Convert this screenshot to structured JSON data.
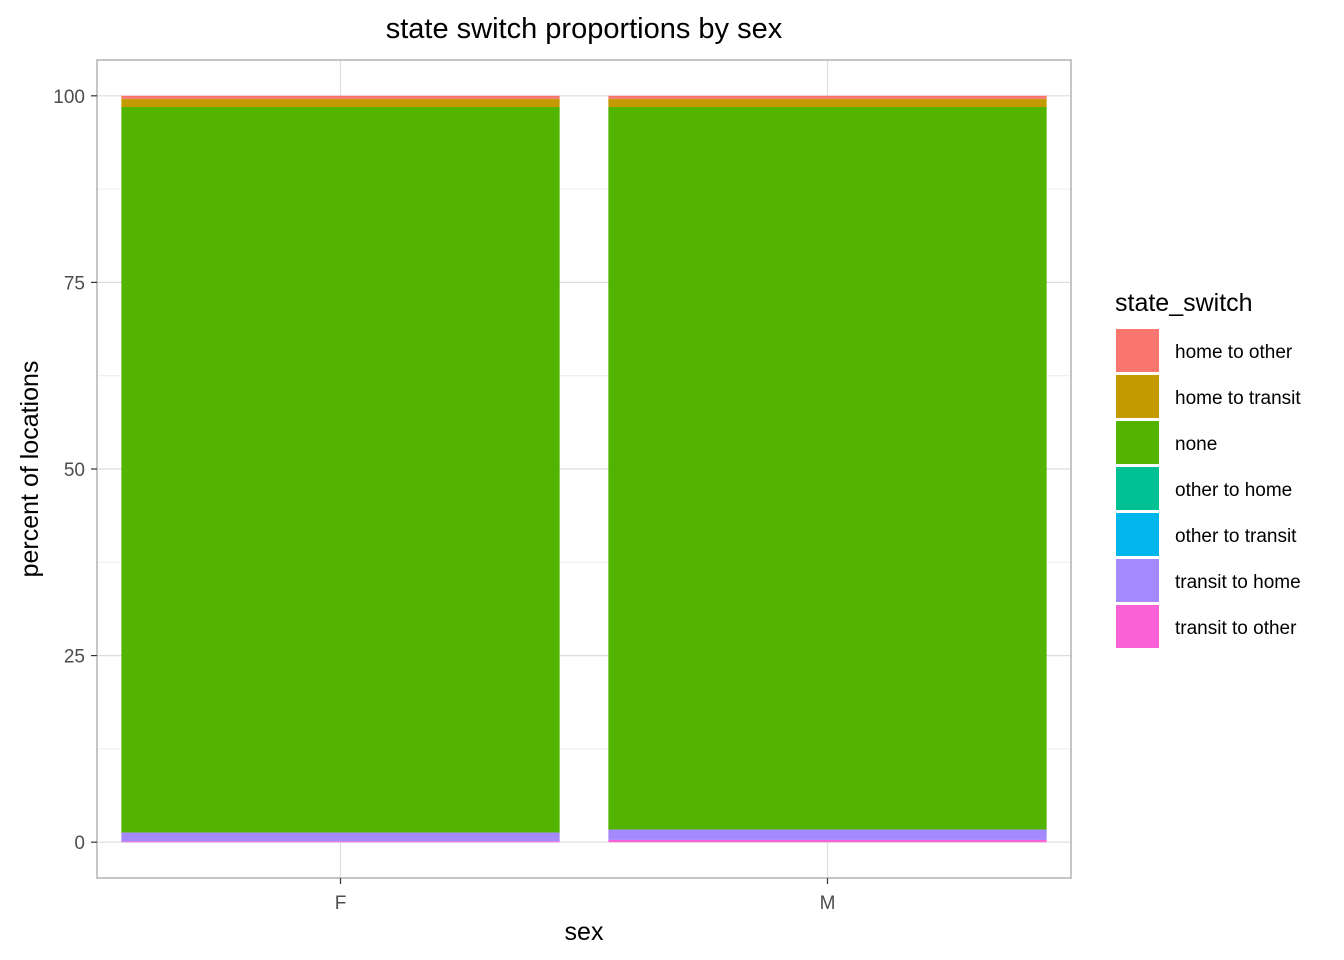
{
  "chart_data": {
    "type": "bar",
    "stacked": true,
    "title": "state switch proportions by sex",
    "xlabel": "sex",
    "ylabel": "percent of locations",
    "categories": [
      "F",
      "M"
    ],
    "ylim": [
      -4.8,
      104.8
    ],
    "yticks": [
      "0",
      "25",
      "50",
      "75",
      "100"
    ],
    "grid": true,
    "legend": {
      "title": "state_switch",
      "position": "right"
    },
    "series": [
      {
        "name": "transit to other",
        "color": "#FB61D7",
        "values": [
          0.1,
          0.3
        ]
      },
      {
        "name": "transit to home",
        "color": "#A58AFF",
        "values": [
          1.2,
          1.4
        ]
      },
      {
        "name": "other to transit",
        "color": "#00B6EB",
        "values": [
          0.0,
          0.0
        ]
      },
      {
        "name": "other to home",
        "color": "#00C094",
        "values": [
          0.0,
          0.0
        ]
      },
      {
        "name": "none",
        "color": "#53B400",
        "values": [
          97.2,
          96.8
        ]
      },
      {
        "name": "home to transit",
        "color": "#C49A00",
        "values": [
          1.1,
          1.1
        ]
      },
      {
        "name": "home to other",
        "color": "#F8766D",
        "values": [
          0.4,
          0.4
        ]
      }
    ],
    "legend_order": [
      "home to other",
      "home to transit",
      "none",
      "other to home",
      "other to transit",
      "transit to home",
      "transit to other"
    ]
  }
}
